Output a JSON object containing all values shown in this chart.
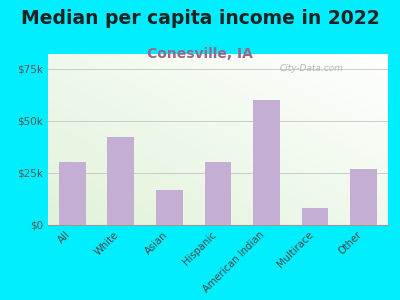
{
  "title": "Median per capita income in 2022",
  "subtitle": "Conesville, IA",
  "categories": [
    "All",
    "White",
    "Asian",
    "Hispanic",
    "American Indian",
    "Multirace",
    "Other"
  ],
  "values": [
    30000,
    42000,
    17000,
    30000,
    60000,
    8000,
    27000
  ],
  "bar_color": "#c4aed4",
  "background_color": "#00eeff",
  "title_fontsize": 13.5,
  "subtitle_fontsize": 10,
  "yticks": [
    0,
    25000,
    50000,
    75000
  ],
  "ytick_labels": [
    "$0",
    "$25k",
    "$50k",
    "$75k"
  ],
  "ylim": [
    0,
    82000
  ],
  "watermark": "City-Data.com"
}
